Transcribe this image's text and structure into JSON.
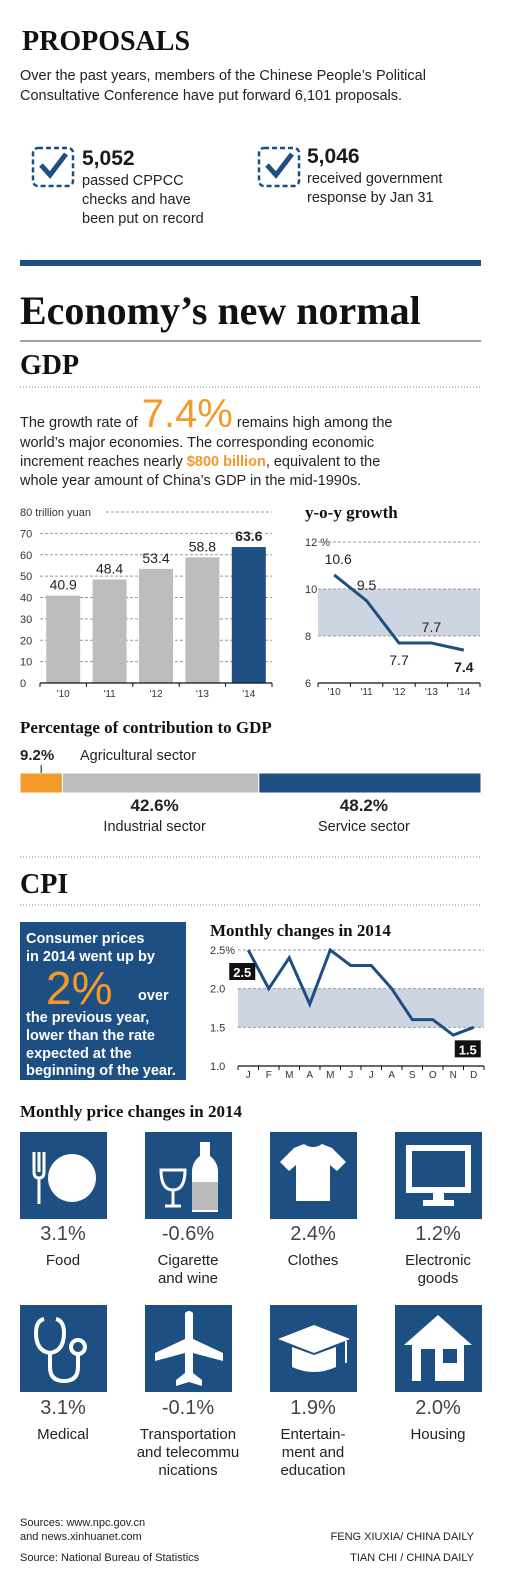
{
  "proposals": {
    "title": "PROPOSALS",
    "intro": [
      "Over the past years, members of the Chinese People’s Political",
      "Consultative Conference have put forward 6,101 proposals."
    ],
    "items": [
      {
        "number": "5,052",
        "text": [
          "passed CPPCC",
          "checks and have",
          "been put on record"
        ]
      },
      {
        "number": "5,046",
        "text": [
          "received government",
          "response by Jan 31"
        ]
      }
    ]
  },
  "title": "Economy’s new normal",
  "gdp": {
    "heading": "GDP",
    "text": [
      [
        "The growth rate of ",
        "7.4%",
        " remains high among the"
      ],
      [
        "world’s major economies. The corresponding economic"
      ],
      [
        "increment reaches nearly ",
        "$800 billion",
        ", equivalent to the"
      ],
      [
        "whole year amount of China’s GDP in the mid-1990s."
      ]
    ]
  },
  "chart_data": [
    {
      "type": "bar",
      "categories": [
        "'10",
        "'11",
        "'12",
        "'13",
        "'14"
      ],
      "values": [
        40.9,
        48.4,
        53.4,
        58.8,
        63.6
      ],
      "colors": [
        "#bdbdbd",
        "#bdbdbd",
        "#bdbdbd",
        "#bdbdbd",
        "#1d4f83"
      ],
      "ylim": [
        0,
        80
      ],
      "yticks": [
        0,
        10,
        20,
        30,
        40,
        50,
        60,
        70,
        {
          "value": 80,
          "label": "80 trillion yuan"
        }
      ],
      "grid": true
    },
    {
      "type": "line",
      "title": "y-o-y growth",
      "categories": [
        "'10",
        "'11",
        "'12",
        "'13",
        "'14"
      ],
      "values": [
        10.6,
        9.5,
        7.7,
        7.7,
        7.4
      ],
      "color": "#1d4f83",
      "ylim": [
        6,
        12
      ],
      "yticks": [
        6,
        8,
        10,
        {
          "value": 12,
          "label": "12 %"
        }
      ],
      "band": [
        8,
        10
      ],
      "grid": true
    },
    {
      "type": "stacked-bar",
      "title": "Percentage of contribution to GDP",
      "xlim": [
        0,
        100
      ],
      "series": [
        {
          "name": "Agricultural sector",
          "color": "#f39a2b",
          "values": [
            9.2
          ],
          "value_labels": [
            "9.2%"
          ]
        },
        {
          "name": "Industrial sector",
          "color": "#bdbdbd",
          "values": [
            42.6
          ],
          "value_labels": [
            "42.6%"
          ]
        },
        {
          "name": "Service sector",
          "color": "#1d4f83",
          "values": [
            48.2
          ],
          "value_labels": [
            "48.2%"
          ]
        }
      ]
    },
    {
      "type": "line",
      "title": "Monthly changes in 2014",
      "categories": [
        "J",
        "F",
        "M",
        "A",
        "M",
        "J",
        "J",
        "A",
        "S",
        "O",
        "N",
        "D"
      ],
      "values": [
        2.5,
        2.0,
        2.4,
        1.8,
        2.5,
        2.3,
        2.3,
        2.0,
        1.6,
        1.6,
        1.4,
        1.5
      ],
      "value_labels": [
        "2.5",
        null,
        null,
        null,
        null,
        null,
        null,
        null,
        null,
        null,
        null,
        "1.5"
      ],
      "color": "#1d4f83",
      "ylim": [
        1,
        2.5
      ],
      "yticks": [
        {
          "value": 1,
          "label": "1.0"
        },
        1.5,
        {
          "value": 2,
          "label": "2.0"
        },
        {
          "value": 2.5,
          "label": "2.5%"
        }
      ],
      "band": [
        1.5,
        2
      ],
      "grid": true
    }
  ],
  "cpi": {
    "heading": "CPI",
    "box": [
      "Consumer prices",
      "in 2014 went up by",
      "2%",
      "over",
      "the previous year,",
      "lower than the rate",
      "expected at the",
      "beginning of the year."
    ]
  },
  "price_changes": {
    "title": "Monthly price changes in 2014",
    "items": [
      {
        "value": "3.1%",
        "label": [
          "Food"
        ]
      },
      {
        "value": "-0.6%",
        "label": [
          "Cigarette",
          "and wine"
        ]
      },
      {
        "value": "2.4%",
        "label": [
          "Clothes"
        ]
      },
      {
        "value": "1.2%",
        "label": [
          "Electronic",
          "goods"
        ]
      },
      {
        "value": "3.1%",
        "label": [
          "Medical"
        ]
      },
      {
        "value": "-0.1%",
        "label": [
          "Transportation",
          "and telecommu",
          "nications"
        ]
      },
      {
        "value": "1.9%",
        "label": [
          "Entertain-",
          "ment and",
          "education"
        ]
      },
      {
        "value": "2.0%",
        "label": [
          "Housing"
        ]
      }
    ]
  },
  "sources": {
    "left": [
      "Sources: www.npc.gov.cn",
      "and news.xinhuanet.com"
    ],
    "left2": "Source: National Bureau of Statistics",
    "credits": [
      "FENG XIUXIA/ CHINA DAILY",
      "TIAN CHI / CHINA DAILY"
    ]
  }
}
